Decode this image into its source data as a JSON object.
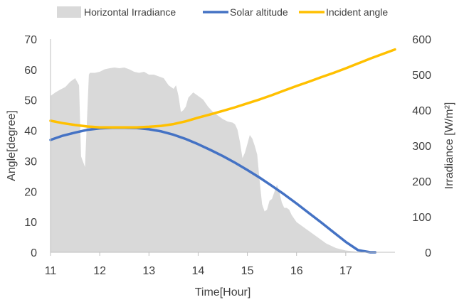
{
  "chart_data": {
    "type": "line",
    "title": "",
    "xlabel": "Time[Hour]",
    "ylabel": "Angle[degree]",
    "y2label": "Irradiance [W/m²]",
    "xlim": [
      11,
      18
    ],
    "ylim": [
      0,
      70
    ],
    "y2lim": [
      0,
      600
    ],
    "xticks": [
      "11",
      "12",
      "13",
      "14",
      "15",
      "16",
      "17"
    ],
    "yticks": [
      "0",
      "10",
      "20",
      "30",
      "40",
      "50",
      "60",
      "70"
    ],
    "y2ticks": [
      "0",
      "100",
      "200",
      "300",
      "400",
      "500",
      "600"
    ],
    "legend_position": "top",
    "grid": false,
    "series": [
      {
        "name": "Horizontal Irradiance",
        "kind": "area",
        "axis": "right",
        "color": "#d9d9d9",
        "x": [
          11.0,
          11.1,
          11.2,
          11.3,
          11.4,
          11.5,
          11.58,
          11.62,
          11.7,
          11.78,
          11.8,
          11.9,
          12.0,
          12.1,
          12.2,
          12.3,
          12.4,
          12.5,
          12.6,
          12.7,
          12.8,
          12.9,
          13.0,
          13.1,
          13.2,
          13.3,
          13.4,
          13.5,
          13.55,
          13.6,
          13.65,
          13.7,
          13.75,
          13.8,
          13.9,
          14.0,
          14.1,
          14.2,
          14.3,
          14.4,
          14.5,
          14.6,
          14.7,
          14.75,
          14.8,
          14.85,
          14.9,
          14.95,
          15.0,
          15.05,
          15.1,
          15.15,
          15.2,
          15.25,
          15.3,
          15.35,
          15.4,
          15.45,
          15.5,
          15.55,
          15.6,
          15.65,
          15.7,
          15.75,
          15.8,
          15.85,
          15.9,
          16.0,
          16.2,
          16.4,
          16.6,
          16.8,
          17.0,
          17.2,
          17.3
        ],
        "values": [
          440,
          450,
          458,
          465,
          480,
          490,
          470,
          270,
          240,
          500,
          505,
          505,
          508,
          515,
          518,
          520,
          518,
          520,
          515,
          508,
          505,
          508,
          500,
          500,
          495,
          490,
          470,
          460,
          470,
          440,
          395,
          400,
          410,
          435,
          450,
          440,
          430,
          410,
          395,
          385,
          375,
          368,
          365,
          360,
          345,
          310,
          265,
          280,
          305,
          330,
          320,
          300,
          275,
          200,
          135,
          115,
          120,
          145,
          150,
          170,
          190,
          170,
          140,
          125,
          125,
          120,
          105,
          85,
          65,
          45,
          25,
          12,
          5,
          2,
          0
        ]
      },
      {
        "name": "Solar altitude",
        "kind": "line",
        "axis": "left",
        "color": "#4472c4",
        "x": [
          11.0,
          11.25,
          11.5,
          11.75,
          12.0,
          12.25,
          12.5,
          12.75,
          13.0,
          13.25,
          13.5,
          13.75,
          14.0,
          14.25,
          14.5,
          14.75,
          15.0,
          15.25,
          15.5,
          15.75,
          16.0,
          16.25,
          16.5,
          16.75,
          17.0,
          17.25,
          17.5,
          17.6
        ],
        "values": [
          36.9,
          38.3,
          39.3,
          40.2,
          40.7,
          40.9,
          40.9,
          40.8,
          40.4,
          39.7,
          38.6,
          37.2,
          35.5,
          33.6,
          31.6,
          29.4,
          27.0,
          24.5,
          21.8,
          19.0,
          16.0,
          12.9,
          9.8,
          6.6,
          3.4,
          0.7,
          0.0,
          0.0
        ]
      },
      {
        "name": "Incident angle",
        "kind": "line",
        "axis": "left",
        "color": "#ffc000",
        "x": [
          11.0,
          11.25,
          11.5,
          11.75,
          12.0,
          12.25,
          12.5,
          12.75,
          13.0,
          13.25,
          13.5,
          13.75,
          14.0,
          14.25,
          14.5,
          14.75,
          15.0,
          15.25,
          15.5,
          15.75,
          16.0,
          16.25,
          16.5,
          16.75,
          17.0,
          17.25,
          17.5,
          17.75,
          18.0
        ],
        "values": [
          43.2,
          42.4,
          41.8,
          41.3,
          41.0,
          41.0,
          41.0,
          41.0,
          41.2,
          41.5,
          42.1,
          43.0,
          44.2,
          45.3,
          46.4,
          47.6,
          48.9,
          50.2,
          51.6,
          53.1,
          54.6,
          56.0,
          57.5,
          58.9,
          60.4,
          62.0,
          63.6,
          65.1,
          66.6
        ]
      }
    ]
  }
}
